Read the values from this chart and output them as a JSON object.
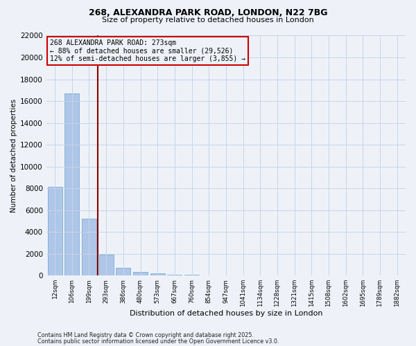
{
  "title1": "268, ALEXANDRA PARK ROAD, LONDON, N22 7BG",
  "title2": "Size of property relative to detached houses in London",
  "xlabel": "Distribution of detached houses by size in London",
  "ylabel": "Number of detached properties",
  "categories": [
    "12sqm",
    "106sqm",
    "199sqm",
    "293sqm",
    "386sqm",
    "480sqm",
    "573sqm",
    "667sqm",
    "760sqm",
    "854sqm",
    "947sqm",
    "1041sqm",
    "1134sqm",
    "1228sqm",
    "1321sqm",
    "1415sqm",
    "1508sqm",
    "1602sqm",
    "1695sqm",
    "1789sqm",
    "1882sqm"
  ],
  "values": [
    8100,
    16700,
    5200,
    1900,
    700,
    330,
    190,
    100,
    40,
    10,
    0,
    0,
    0,
    0,
    0,
    0,
    0,
    0,
    0,
    0,
    0
  ],
  "bar_color": "#aec6e8",
  "bar_edge_color": "#7aaed4",
  "vline_color": "#8b0000",
  "annotation_title": "268 ALEXANDRA PARK ROAD: 273sqm",
  "annotation_line1": "← 88% of detached houses are smaller (29,526)",
  "annotation_line2": "12% of semi-detached houses are larger (3,855) →",
  "annotation_box_color": "#cc0000",
  "ylim": [
    0,
    22000
  ],
  "yticks": [
    0,
    2000,
    4000,
    6000,
    8000,
    10000,
    12000,
    14000,
    16000,
    18000,
    20000,
    22000
  ],
  "footer1": "Contains HM Land Registry data © Crown copyright and database right 2025.",
  "footer2": "Contains public sector information licensed under the Open Government Licence v3.0.",
  "bg_color": "#eef2f8",
  "grid_color": "#c8d4e8"
}
